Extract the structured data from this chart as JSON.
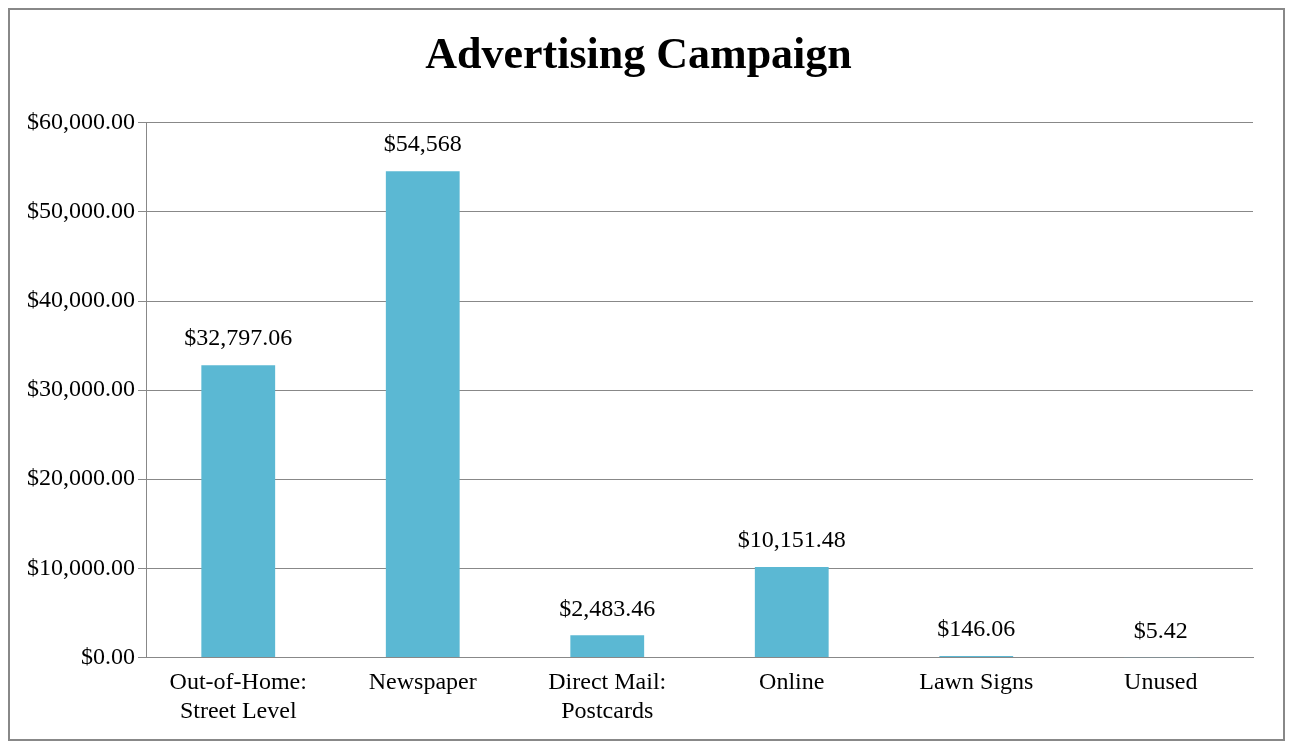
{
  "chart_data": {
    "type": "bar",
    "title": "Advertising Campaign",
    "categories": [
      "Out-of-Home: Street Level",
      "Newspaper",
      "Direct Mail: Postcards",
      "Online",
      "Lawn Signs",
      "Unused"
    ],
    "values": [
      32797.06,
      54568,
      2483.46,
      10151.48,
      146.06,
      5.42
    ],
    "value_labels": [
      "$32,797.06",
      "$54,568",
      "$2,483.46",
      "$10,151.48",
      "$146.06",
      "$5.42"
    ],
    "color": "#5bb8d3",
    "ylim": [
      0,
      60000
    ],
    "yticks": [
      {
        "value": 0,
        "label": "$0.00"
      },
      {
        "value": 10000,
        "label": "$10,000.00"
      },
      {
        "value": 20000,
        "label": "$20,000.00"
      },
      {
        "value": 30000,
        "label": "$30,000.00"
      },
      {
        "value": 40000,
        "label": "$40,000.00"
      },
      {
        "value": 50000,
        "label": "$50,000.00"
      },
      {
        "value": 60000,
        "label": "$60,000.00"
      }
    ],
    "grid": "y",
    "legend": false
  }
}
